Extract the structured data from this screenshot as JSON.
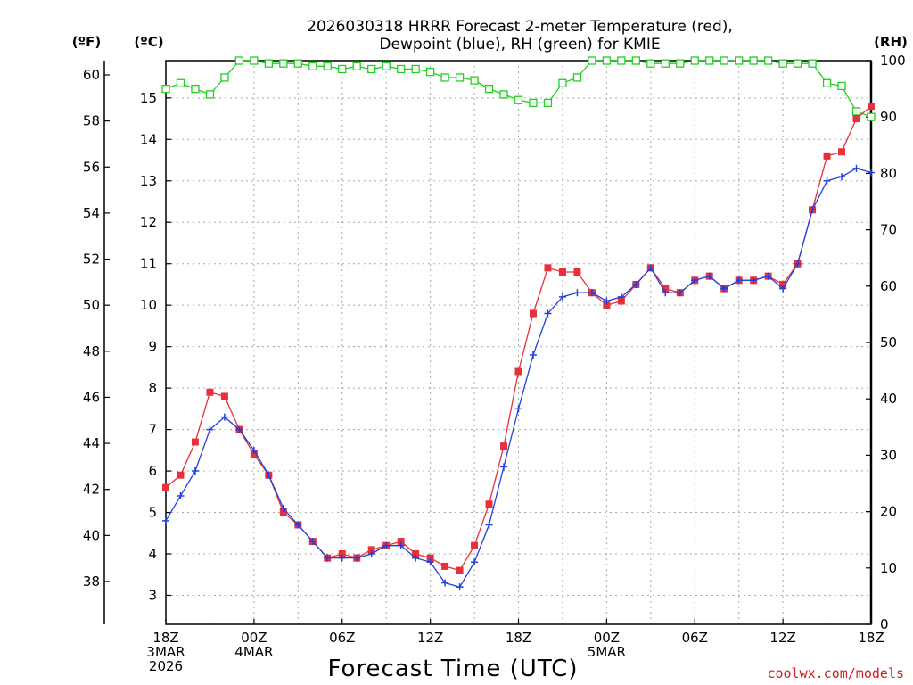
{
  "title_line1": "2026030318 HRRR Forecast 2-meter Temperature (red),",
  "title_line2": "Dewpoint (blue), RH (green) for KMIE",
  "unit_f": "(ºF)",
  "unit_c": "(ºC)",
  "unit_rh": "(RH)",
  "xlabel": "Forecast Time (UTC)",
  "credit": "coolwx.com/models",
  "colors": {
    "temp": "#e8303a",
    "dewpoint": "#2040e0",
    "rh": "#20d020"
  },
  "chart_data": {
    "type": "line",
    "x_hours": [
      0,
      1,
      2,
      3,
      4,
      5,
      6,
      7,
      8,
      9,
      10,
      11,
      12,
      13,
      14,
      15,
      16,
      17,
      18,
      19,
      20,
      21,
      22,
      23,
      24,
      25,
      26,
      27,
      28,
      29,
      30,
      31,
      32,
      33,
      34,
      35,
      36,
      37,
      38,
      39,
      40,
      41,
      42,
      43,
      44,
      45,
      46,
      47,
      48
    ],
    "x_ticks": [
      {
        "hour": 0,
        "lines": [
          "18Z",
          "3MAR",
          "2026"
        ]
      },
      {
        "hour": 6,
        "lines": [
          "00Z",
          "4MAR"
        ]
      },
      {
        "hour": 12,
        "lines": [
          "06Z"
        ]
      },
      {
        "hour": 18,
        "lines": [
          "12Z"
        ]
      },
      {
        "hour": 24,
        "lines": [
          "18Z"
        ]
      },
      {
        "hour": 30,
        "lines": [
          "00Z",
          "5MAR"
        ]
      },
      {
        "hour": 36,
        "lines": [
          "06Z"
        ]
      },
      {
        "hour": 42,
        "lines": [
          "12Z"
        ]
      },
      {
        "hour": 48,
        "lines": [
          "18Z"
        ]
      }
    ],
    "celsius_ylim": [
      2.3,
      15.9
    ],
    "celsius_ticks": [
      3,
      4,
      5,
      6,
      7,
      8,
      9,
      10,
      11,
      12,
      13,
      14,
      15
    ],
    "fahrenheit_ticks": [
      38,
      40,
      42,
      44,
      46,
      48,
      50,
      52,
      54,
      56,
      58,
      60
    ],
    "rh_ylim": [
      0,
      100
    ],
    "rh_ticks": [
      0,
      10,
      20,
      30,
      40,
      50,
      60,
      70,
      80,
      90,
      100
    ],
    "series": [
      {
        "name": "2-meter Temperature",
        "unit": "°C",
        "marker": "square",
        "values": [
          5.6,
          5.9,
          6.7,
          7.9,
          7.8,
          7.0,
          6.4,
          5.9,
          5.0,
          4.7,
          4.3,
          3.9,
          4.0,
          3.9,
          4.1,
          4.2,
          4.3,
          4.0,
          3.9,
          3.7,
          3.6,
          4.2,
          5.2,
          6.6,
          8.4,
          9.8,
          10.9,
          10.8,
          10.8,
          10.3,
          10.0,
          10.1,
          10.5,
          10.9,
          10.4,
          10.3,
          10.6,
          10.7,
          10.4,
          10.6,
          10.6,
          10.7,
          10.5,
          11.0,
          12.3,
          13.6,
          13.7,
          14.5,
          14.8
        ]
      },
      {
        "name": "Dewpoint",
        "unit": "°C",
        "marker": "plus",
        "values": [
          4.8,
          5.4,
          6.0,
          7.0,
          7.3,
          7.0,
          6.5,
          5.9,
          5.1,
          4.7,
          4.3,
          3.9,
          3.9,
          3.9,
          4.0,
          4.2,
          4.2,
          3.9,
          3.8,
          3.3,
          3.2,
          3.8,
          4.7,
          6.1,
          7.5,
          8.8,
          9.8,
          10.2,
          10.3,
          10.3,
          10.1,
          10.2,
          10.5,
          10.9,
          10.3,
          10.3,
          10.6,
          10.7,
          10.4,
          10.6,
          10.6,
          10.7,
          10.4,
          11.0,
          12.3,
          13.0,
          13.1,
          13.3,
          13.2
        ]
      },
      {
        "name": "Relative Humidity",
        "unit": "%",
        "marker": "open-square",
        "values": [
          95,
          96,
          95,
          94,
          97,
          100,
          100,
          99.5,
          99.5,
          99.5,
          99,
          99,
          98.5,
          99,
          98.5,
          99,
          98.5,
          98.5,
          98,
          97,
          97,
          96.5,
          95,
          94,
          93,
          92.5,
          92.5,
          96,
          97,
          100,
          100,
          100,
          100,
          99.5,
          99.5,
          99.5,
          100,
          100,
          100,
          100,
          100,
          100,
          99.5,
          99.5,
          99.5,
          96,
          95.5,
          91,
          90
        ]
      }
    ]
  }
}
